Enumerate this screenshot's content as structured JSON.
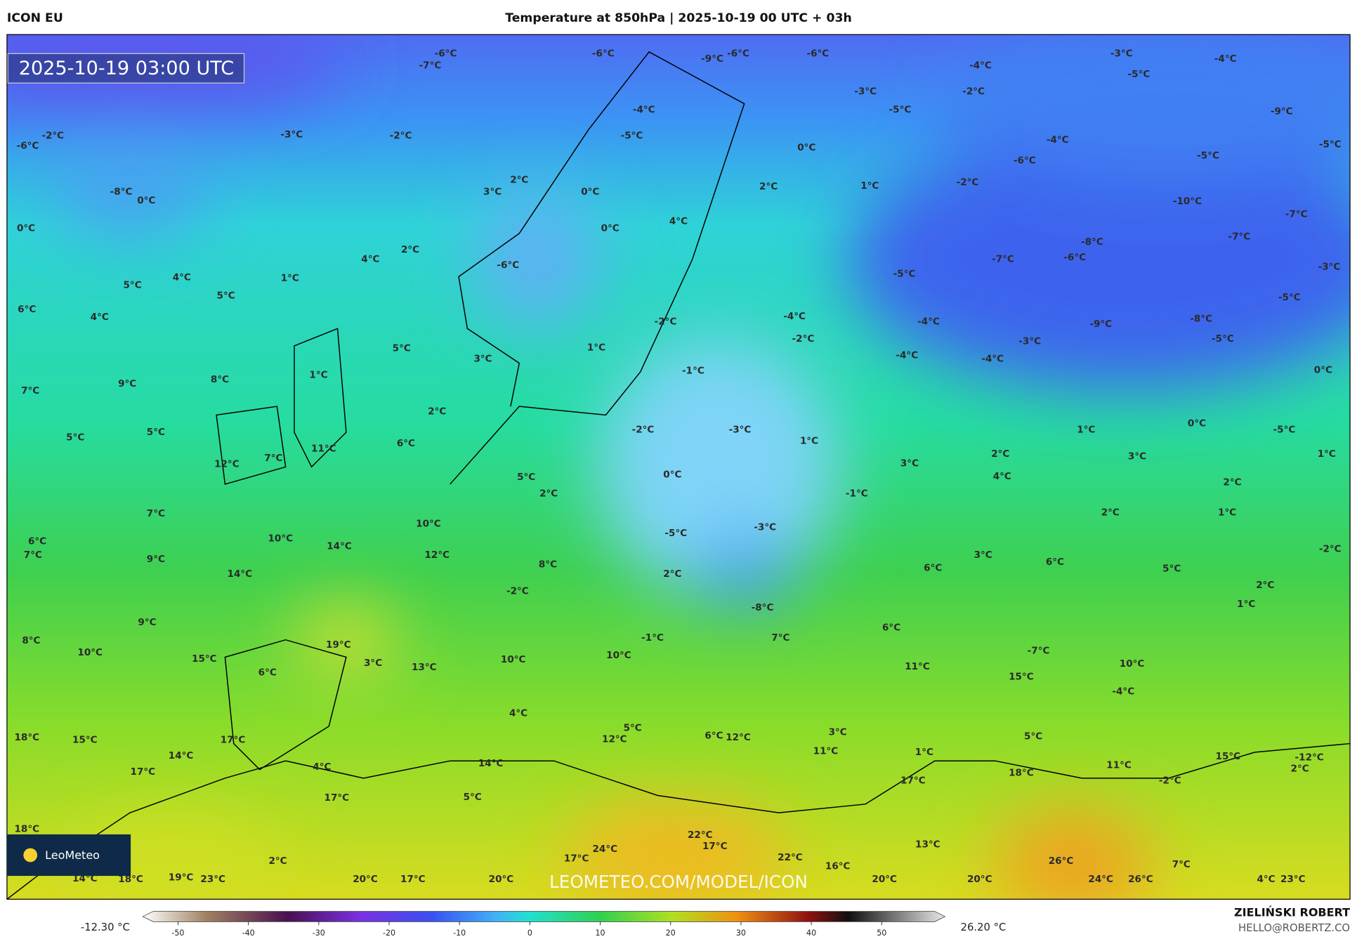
{
  "header": {
    "model": "ICON EU",
    "title": "Temperature at 850hPa | 2025-10-19 00 UTC + 03h"
  },
  "timestamp": "2025-10-19 03:00 UTC",
  "logo": "LeoMeteo",
  "watermark": "LEOMETEO.COM/MODEL/ICON",
  "author": "ZIELIŃSKI ROBERT",
  "email": "HELLO@ROBERTZ.CO",
  "colorbar": {
    "min_label": "-12.30 °C",
    "max_label": "26.20 °C",
    "lim": [
      -55,
      59
    ],
    "ticks": [
      -50,
      -40,
      -30,
      -20,
      -10,
      0,
      10,
      20,
      30,
      40,
      50
    ]
  },
  "labels": [
    "-6°C",
    "-7°C",
    "-6°C",
    "-9°C",
    "-6°C",
    "-6°C",
    "-4°C",
    "-3°C",
    "-4°C",
    "-5°C",
    "-2°C",
    "-3°C",
    "-5°C",
    "-4°C",
    "-5°C",
    "-2°C",
    "-3°C",
    "-2°C",
    "-6°C",
    "-8°C",
    "0°C",
    "0°C",
    "0°C",
    "-4°C",
    "-6°C",
    "-5°C",
    "-9°C",
    "-5°C",
    "-2°C",
    "1°C",
    "-10°C",
    "-7°C",
    "2°C",
    "3°C",
    "2°C",
    "0°C",
    "0°C",
    "4°C",
    "-8°C",
    "-7°C",
    "-7°C",
    "-6°C",
    "-3°C",
    "-5°C",
    "4°C",
    "2°C",
    "-6°C",
    "4°C",
    "5°C",
    "1°C",
    "5°C",
    "6°C",
    "4°C",
    "-5°C",
    "-2°C",
    "-4°C",
    "-2°C",
    "-4°C",
    "-9°C",
    "-8°C",
    "-3°C",
    "-5°C",
    "-4°C",
    "-4°C",
    "1°C",
    "5°C",
    "3°C",
    "1°C",
    "-1°C",
    "0°C",
    "7°C",
    "9°C",
    "8°C",
    "2°C",
    "-2°C",
    "-3°C",
    "1°C",
    "0°C",
    "-5°C",
    "1°C",
    "5°C",
    "5°C",
    "6°C",
    "11°C",
    "7°C",
    "12°C",
    "2°C",
    "3°C",
    "1°C",
    "3°C",
    "4°C",
    "0°C",
    "5°C",
    "2°C",
    "-1°C",
    "2°C",
    "7°C",
    "2°C",
    "1°C",
    "10°C",
    "-5°C",
    "-3°C",
    "6°C",
    "7°C",
    "10°C",
    "14°C",
    "12°C",
    "9°C",
    "3°C",
    "-2°C",
    "8°C",
    "6°C",
    "6°C",
    "5°C",
    "14°C",
    "2°C",
    "2°C",
    "-2°C",
    "-8°C",
    "1°C",
    "9°C",
    "6°C",
    "8°C",
    "-1°C",
    "7°C",
    "10°C",
    "19°C",
    "-7°C",
    "15°C",
    "3°C",
    "13°C",
    "10°C",
    "10°C",
    "11°C",
    "10°C",
    "6°C",
    "15°C",
    "-4°C",
    "4°C",
    "5°C",
    "12°C",
    "3°C",
    "5°C",
    "18°C",
    "15°C",
    "17°C",
    "6°C",
    "12°C",
    "11°C",
    "1°C",
    "15°C",
    "-12°C",
    "14°C",
    "4°C",
    "14°C",
    "11°C",
    "2°C",
    "17°C",
    "18°C",
    "-2°C",
    "17°C",
    "17°C",
    "5°C",
    "18°C",
    "22°C",
    "24°C",
    "17°C",
    "13°C",
    "17°C",
    "22°C",
    "26°C",
    "2°C",
    "16°C",
    "7°C",
    "14°C",
    "18°C",
    "19°C",
    "23°C",
    "20°C",
    "17°C",
    "20°C",
    "20°C",
    "20°C",
    "24°C",
    "26°C",
    "4°C",
    "23°C"
  ]
}
